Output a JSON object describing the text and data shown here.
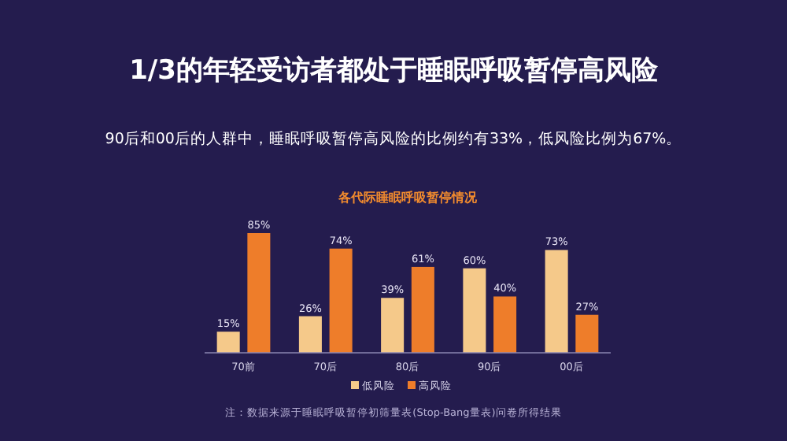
{
  "chart_data": {
    "type": "bar",
    "title": "1/3的年轻受访者都处于睡眠呼吸暂停高风险",
    "subtitle": "90后和00后的人群中，睡眠呼吸暂停高风险的比例约有33%，低风险比例为67%。",
    "xlabel": "各代际睡眠呼吸暂停情况",
    "categories": [
      "70前",
      "70后",
      "80后",
      "90后",
      "00后"
    ],
    "series": [
      {
        "name": "低风险",
        "color": "#f5c98a",
        "values": [
          15,
          26,
          39,
          60,
          73
        ],
        "value_labels": [
          "15%",
          "26%",
          "39%",
          "60%",
          "73%"
        ]
      },
      {
        "name": "高风险",
        "color": "#ee7d2a",
        "values": [
          85,
          74,
          61,
          40,
          27
        ],
        "value_labels": [
          "85%",
          "74%",
          "61%",
          "40%",
          "27%"
        ]
      }
    ],
    "legend": "bottom",
    "annotations": [
      "注：数据来源于睡眠呼吸暂停初筛量表(Stop-Bang量表)问卷所得结果"
    ]
  }
}
